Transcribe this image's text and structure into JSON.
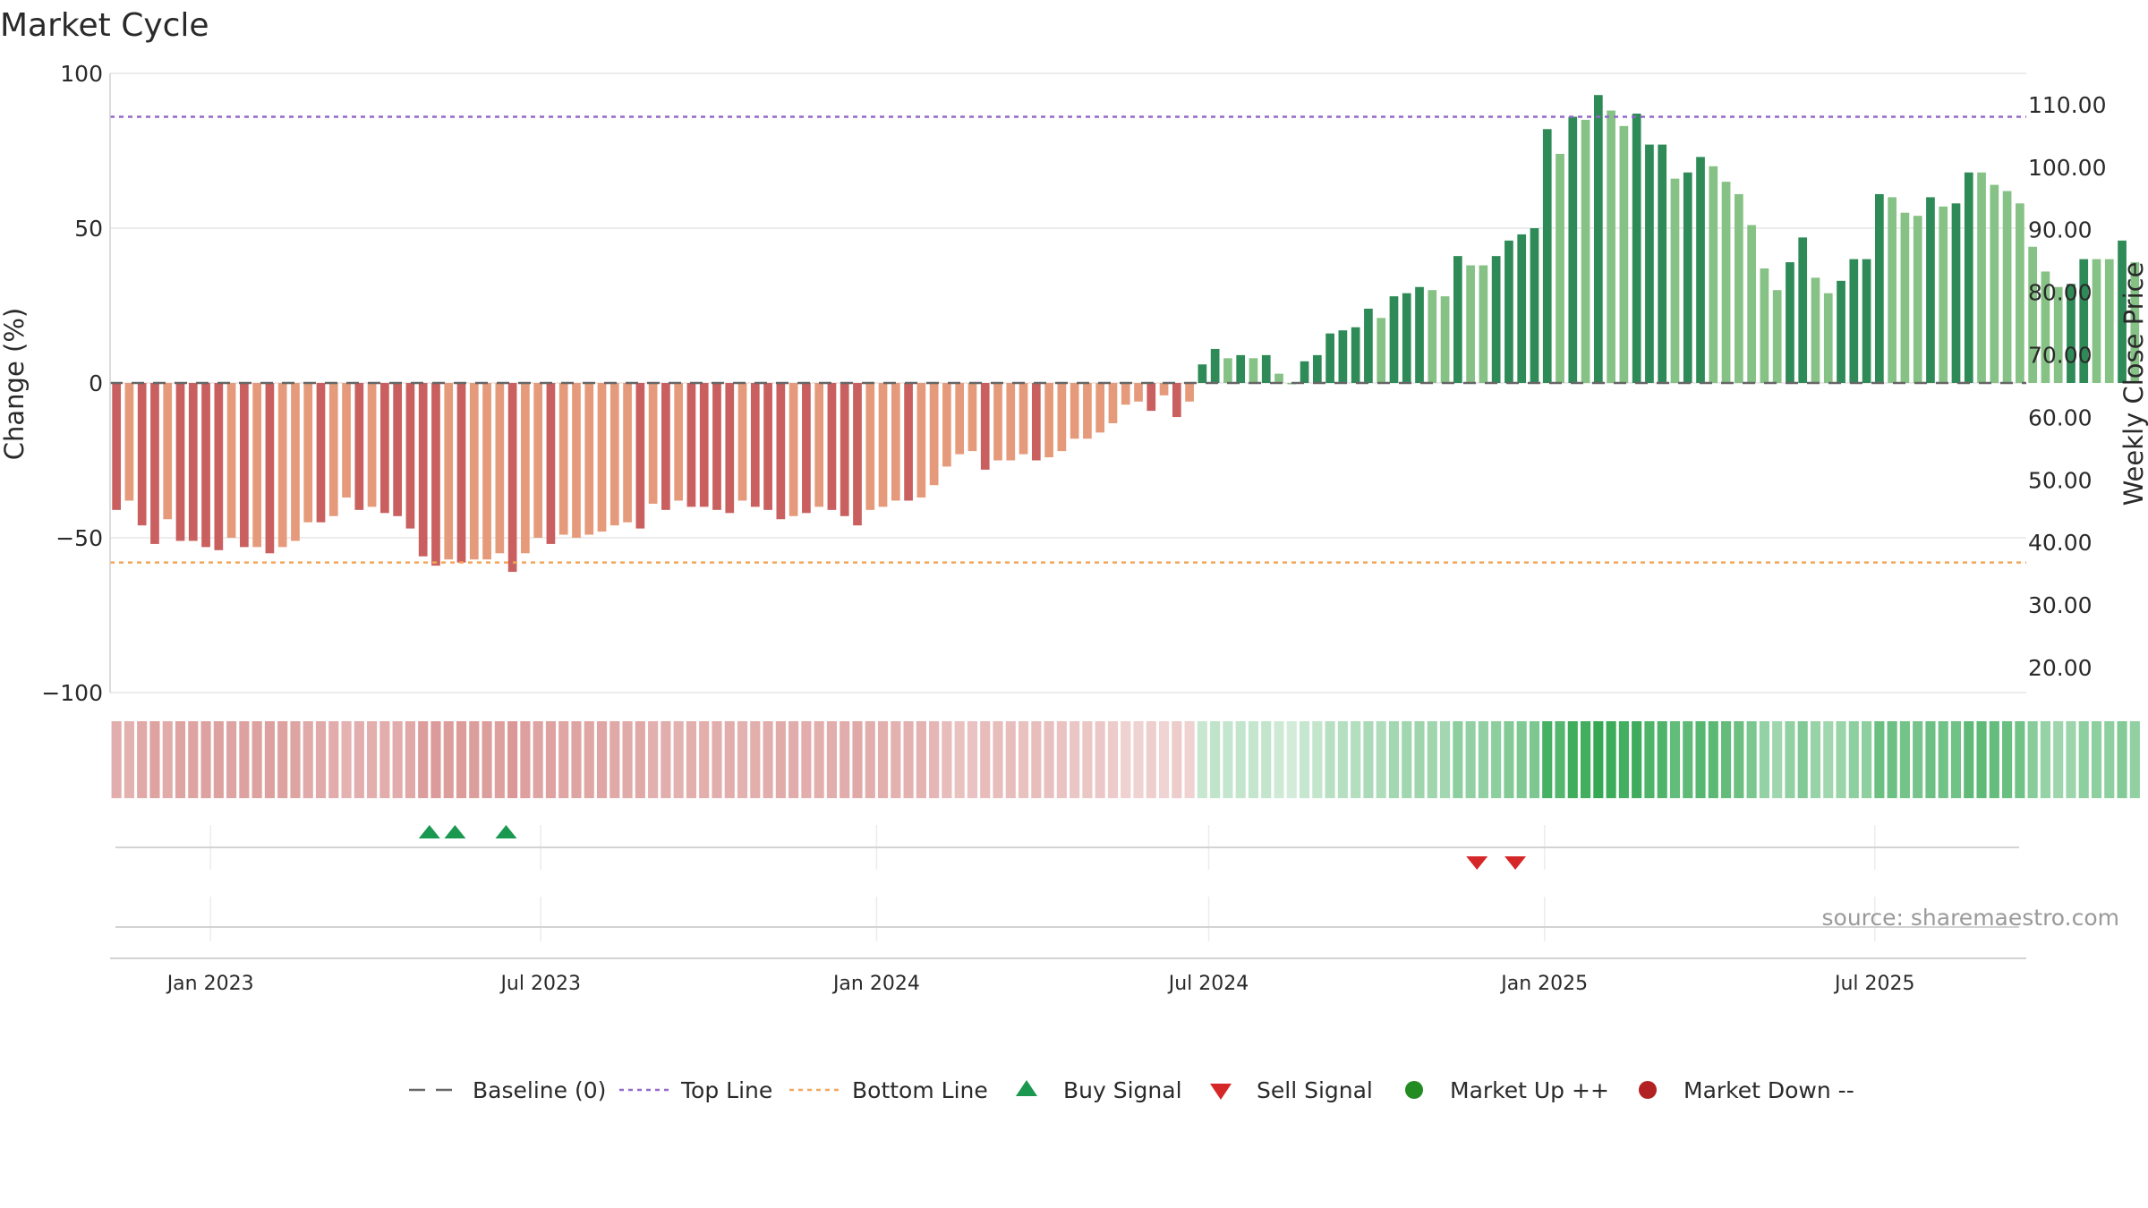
{
  "chart_data": {
    "type": "bar",
    "title": "Market Cycle",
    "ylabel": "Change (%)",
    "y2label": "Weekly Close Price",
    "source": "source: sharemaestro.com",
    "ylim": [
      -100,
      100
    ],
    "y2lim": [
      16.0,
      115.0
    ],
    "xlim": [
      "2022-11-07",
      "2025-09-22"
    ],
    "y_ticks": [
      100,
      50,
      0,
      -50,
      -100
    ],
    "y_tick_labels": [
      "100",
      "50",
      "0",
      "−50",
      "−100"
    ],
    "y2_ticks": [
      110,
      100,
      90,
      80,
      70,
      60,
      50,
      40,
      30,
      20
    ],
    "y2_tick_labels": [
      "110.00",
      "100.00",
      "90.00",
      "80.00",
      "70.00",
      "60.00",
      "50.00",
      "40.00",
      "30.00",
      "20.00"
    ],
    "date_ticks": [
      {
        "date": "2023-01-01",
        "label": "Jan 2023"
      },
      {
        "date": "2023-07-01",
        "label": "Jul 2023"
      },
      {
        "date": "2024-01-01",
        "label": "Jan 2024"
      },
      {
        "date": "2024-07-01",
        "label": "Jul 2024"
      },
      {
        "date": "2025-01-01",
        "label": "Jan 2025"
      },
      {
        "date": "2025-07-01",
        "label": "Jul 2025"
      }
    ],
    "first_week": "2022-11-07",
    "top_line": 86,
    "bottom_line": -58,
    "baseline": 0,
    "colors": {
      "neg_dark": "#c95f5f",
      "neg_light": "#e59b7b",
      "pos_dark": "#2e8b57",
      "pos_light": "#86c286",
      "top_line": "#9268c9",
      "bottom_line": "#f2a65a",
      "baseline": "#666666",
      "buy": "#1a9850",
      "sell": "#d62728",
      "market_up": "#228b22",
      "market_down": "#b22222",
      "grid": "#e6e6e6"
    },
    "series": [
      {
        "name": "Change (%)",
        "values": [
          -41,
          -38,
          -46,
          -52,
          -44,
          -51,
          -51,
          -53,
          -54,
          -50,
          -53,
          -53,
          -55,
          -53,
          -51,
          -45,
          -45,
          -43,
          -37,
          -41,
          -40,
          -42,
          -43,
          -47,
          -56,
          -59,
          -57,
          -58,
          -57,
          -57,
          -55,
          -61,
          -55,
          -50,
          -52,
          -49,
          -50,
          -49,
          -48,
          -46,
          -45,
          -47,
          -39,
          -41,
          -38,
          -40,
          -40,
          -41,
          -42,
          -38,
          -40,
          -41,
          -44,
          -43,
          -42,
          -40,
          -41,
          -43,
          -46,
          -41,
          -40,
          -38,
          -38,
          -37,
          -33,
          -27,
          -23,
          -22,
          -28,
          -25,
          -25,
          -23,
          -25,
          -24,
          -22,
          -18,
          -18,
          -16,
          -13,
          -7,
          -6,
          -9,
          -4,
          -11,
          -6,
          6,
          11,
          8,
          9,
          8,
          9,
          3,
          0,
          7,
          9,
          16,
          17,
          18,
          24,
          21,
          28,
          29,
          31,
          30,
          28,
          41,
          38,
          38,
          41,
          46,
          48,
          50,
          82,
          74,
          86,
          85,
          93,
          88,
          83,
          87,
          77,
          77,
          66,
          68,
          73,
          70,
          65,
          61,
          51,
          37,
          30,
          39,
          47,
          34,
          29,
          33,
          40,
          40,
          61,
          60,
          55,
          54,
          60,
          57,
          58,
          68,
          68,
          64,
          62,
          58,
          44,
          36,
          31,
          32,
          40,
          40,
          40,
          46,
          39
        ],
        "shade": [
          1,
          0,
          1,
          1,
          0,
          1,
          1,
          1,
          1,
          0,
          1,
          0,
          1,
          0,
          0,
          0,
          1,
          0,
          0,
          1,
          0,
          1,
          1,
          1,
          1,
          1,
          0,
          1,
          0,
          0,
          0,
          1,
          0,
          0,
          1,
          0,
          0,
          0,
          0,
          0,
          0,
          1,
          0,
          1,
          0,
          1,
          1,
          1,
          1,
          0,
          1,
          1,
          1,
          0,
          1,
          0,
          1,
          1,
          1,
          0,
          0,
          0,
          1,
          0,
          0,
          0,
          0,
          0,
          1,
          0,
          0,
          0,
          1,
          0,
          0,
          0,
          0,
          0,
          0,
          0,
          0,
          1,
          0,
          1,
          0,
          1,
          1,
          0,
          1,
          0,
          1,
          0,
          0,
          1,
          1,
          1,
          1,
          1,
          1,
          0,
          1,
          1,
          1,
          0,
          0,
          1,
          0,
          0,
          1,
          1,
          1,
          1,
          1,
          0,
          1,
          0,
          1,
          0,
          0,
          1,
          1,
          1,
          0,
          1,
          1,
          0,
          0,
          0,
          0,
          0,
          0,
          1,
          1,
          0,
          0,
          1,
          1,
          1,
          1,
          0,
          0,
          0,
          1,
          0,
          1,
          1,
          0,
          0,
          0,
          0,
          0,
          0,
          0,
          1,
          1,
          0,
          0,
          1,
          0
        ]
      }
    ],
    "buy_signals": [
      "2023-05-01",
      "2023-05-15",
      "2023-06-12"
    ],
    "sell_signals": [
      "2024-11-25",
      "2024-12-16"
    ],
    "legend_position": "bottom-center",
    "legend": [
      {
        "key": "baseline",
        "label": "Baseline (0)"
      },
      {
        "key": "top_line",
        "label": "Top Line"
      },
      {
        "key": "bottom_line",
        "label": "Bottom Line"
      },
      {
        "key": "buy",
        "label": "Buy Signal"
      },
      {
        "key": "sell",
        "label": "Sell Signal"
      },
      {
        "key": "market_up",
        "label": "Market Up ++"
      },
      {
        "key": "market_down",
        "label": "Market Down --"
      }
    ]
  }
}
